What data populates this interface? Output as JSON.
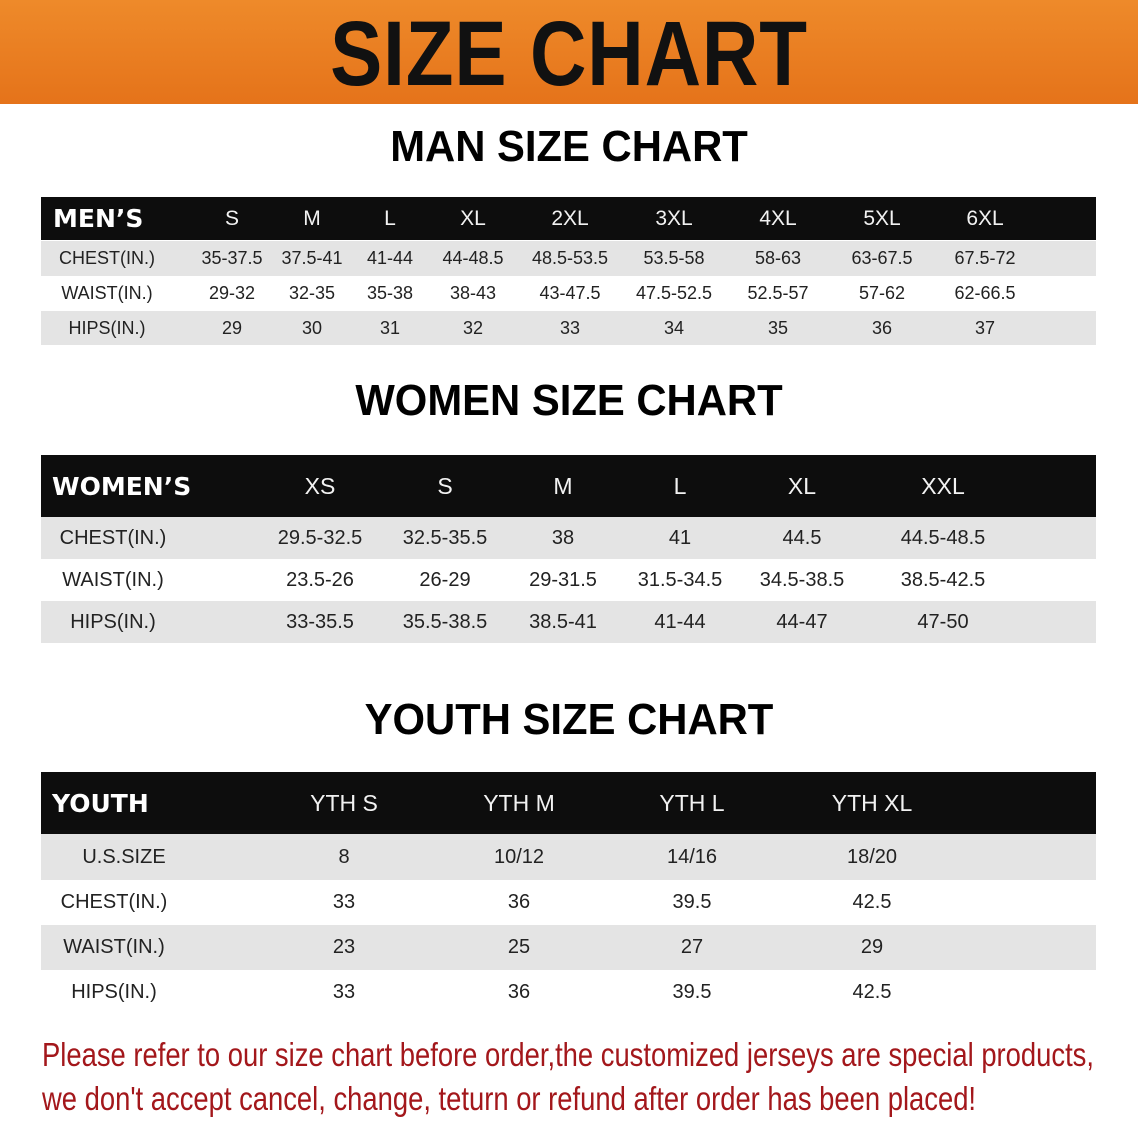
{
  "banner": {
    "title": "SIZE CHART",
    "color": "#e97d1f"
  },
  "men": {
    "title": "MAN SIZE CHART",
    "header": [
      "MEN’S",
      "S",
      "M",
      "L",
      "XL",
      "2XL",
      "3XL",
      "4XL",
      "5XL",
      "6XL"
    ],
    "rows": [
      [
        "CHEST(IN.)",
        "35-37.5",
        "37.5-41",
        "41-44",
        "44-48.5",
        "48.5-53.5",
        "53.5-58",
        "58-63",
        "63-67.5",
        "67.5-72"
      ],
      [
        "WAIST(IN.)",
        "29-32",
        "32-35",
        "35-38",
        "38-43",
        "43-47.5",
        "47.5-52.5",
        "52.5-57",
        "57-62",
        "62-66.5"
      ],
      [
        "HIPS(IN.)",
        "29",
        "30",
        "31",
        "32",
        "33",
        "34",
        "35",
        "36",
        "37"
      ]
    ]
  },
  "women": {
    "title": "WOMEN SIZE CHART",
    "header": [
      "WOMEN’S",
      "XS",
      "S",
      "M",
      "L",
      "XL",
      "XXL"
    ],
    "rows": [
      [
        "CHEST(IN.)",
        "29.5-32.5",
        "32.5-35.5",
        "38",
        "41",
        "44.5",
        "44.5-48.5"
      ],
      [
        "WAIST(IN.)",
        "23.5-26",
        "26-29",
        "29-31.5",
        "31.5-34.5",
        "34.5-38.5",
        "38.5-42.5"
      ],
      [
        "HIPS(IN.)",
        "33-35.5",
        "35.5-38.5",
        "38.5-41",
        "41-44",
        "44-47",
        "47-50"
      ]
    ]
  },
  "youth": {
    "title": "YOUTH SIZE CHART",
    "header": [
      "YOUTH",
      "YTH S",
      "YTH M",
      "YTH L",
      "YTH XL"
    ],
    "rows": [
      [
        "U.S.SIZE",
        "8",
        "10/12",
        "14/16",
        "18/20"
      ],
      [
        "CHEST(IN.)",
        "33",
        "36",
        "39.5",
        "42.5"
      ],
      [
        "WAIST(IN.)",
        "23",
        "25",
        "27",
        "29"
      ],
      [
        "HIPS(IN.)",
        "33",
        "36",
        "39.5",
        "42.5"
      ]
    ]
  },
  "notice": {
    "line1": "Please refer to our size chart before order,the customized jerseys are special products,",
    "line2": "we don't accept cancel, change, teturn or refund after order has been placed!",
    "color": "#a3171b"
  }
}
